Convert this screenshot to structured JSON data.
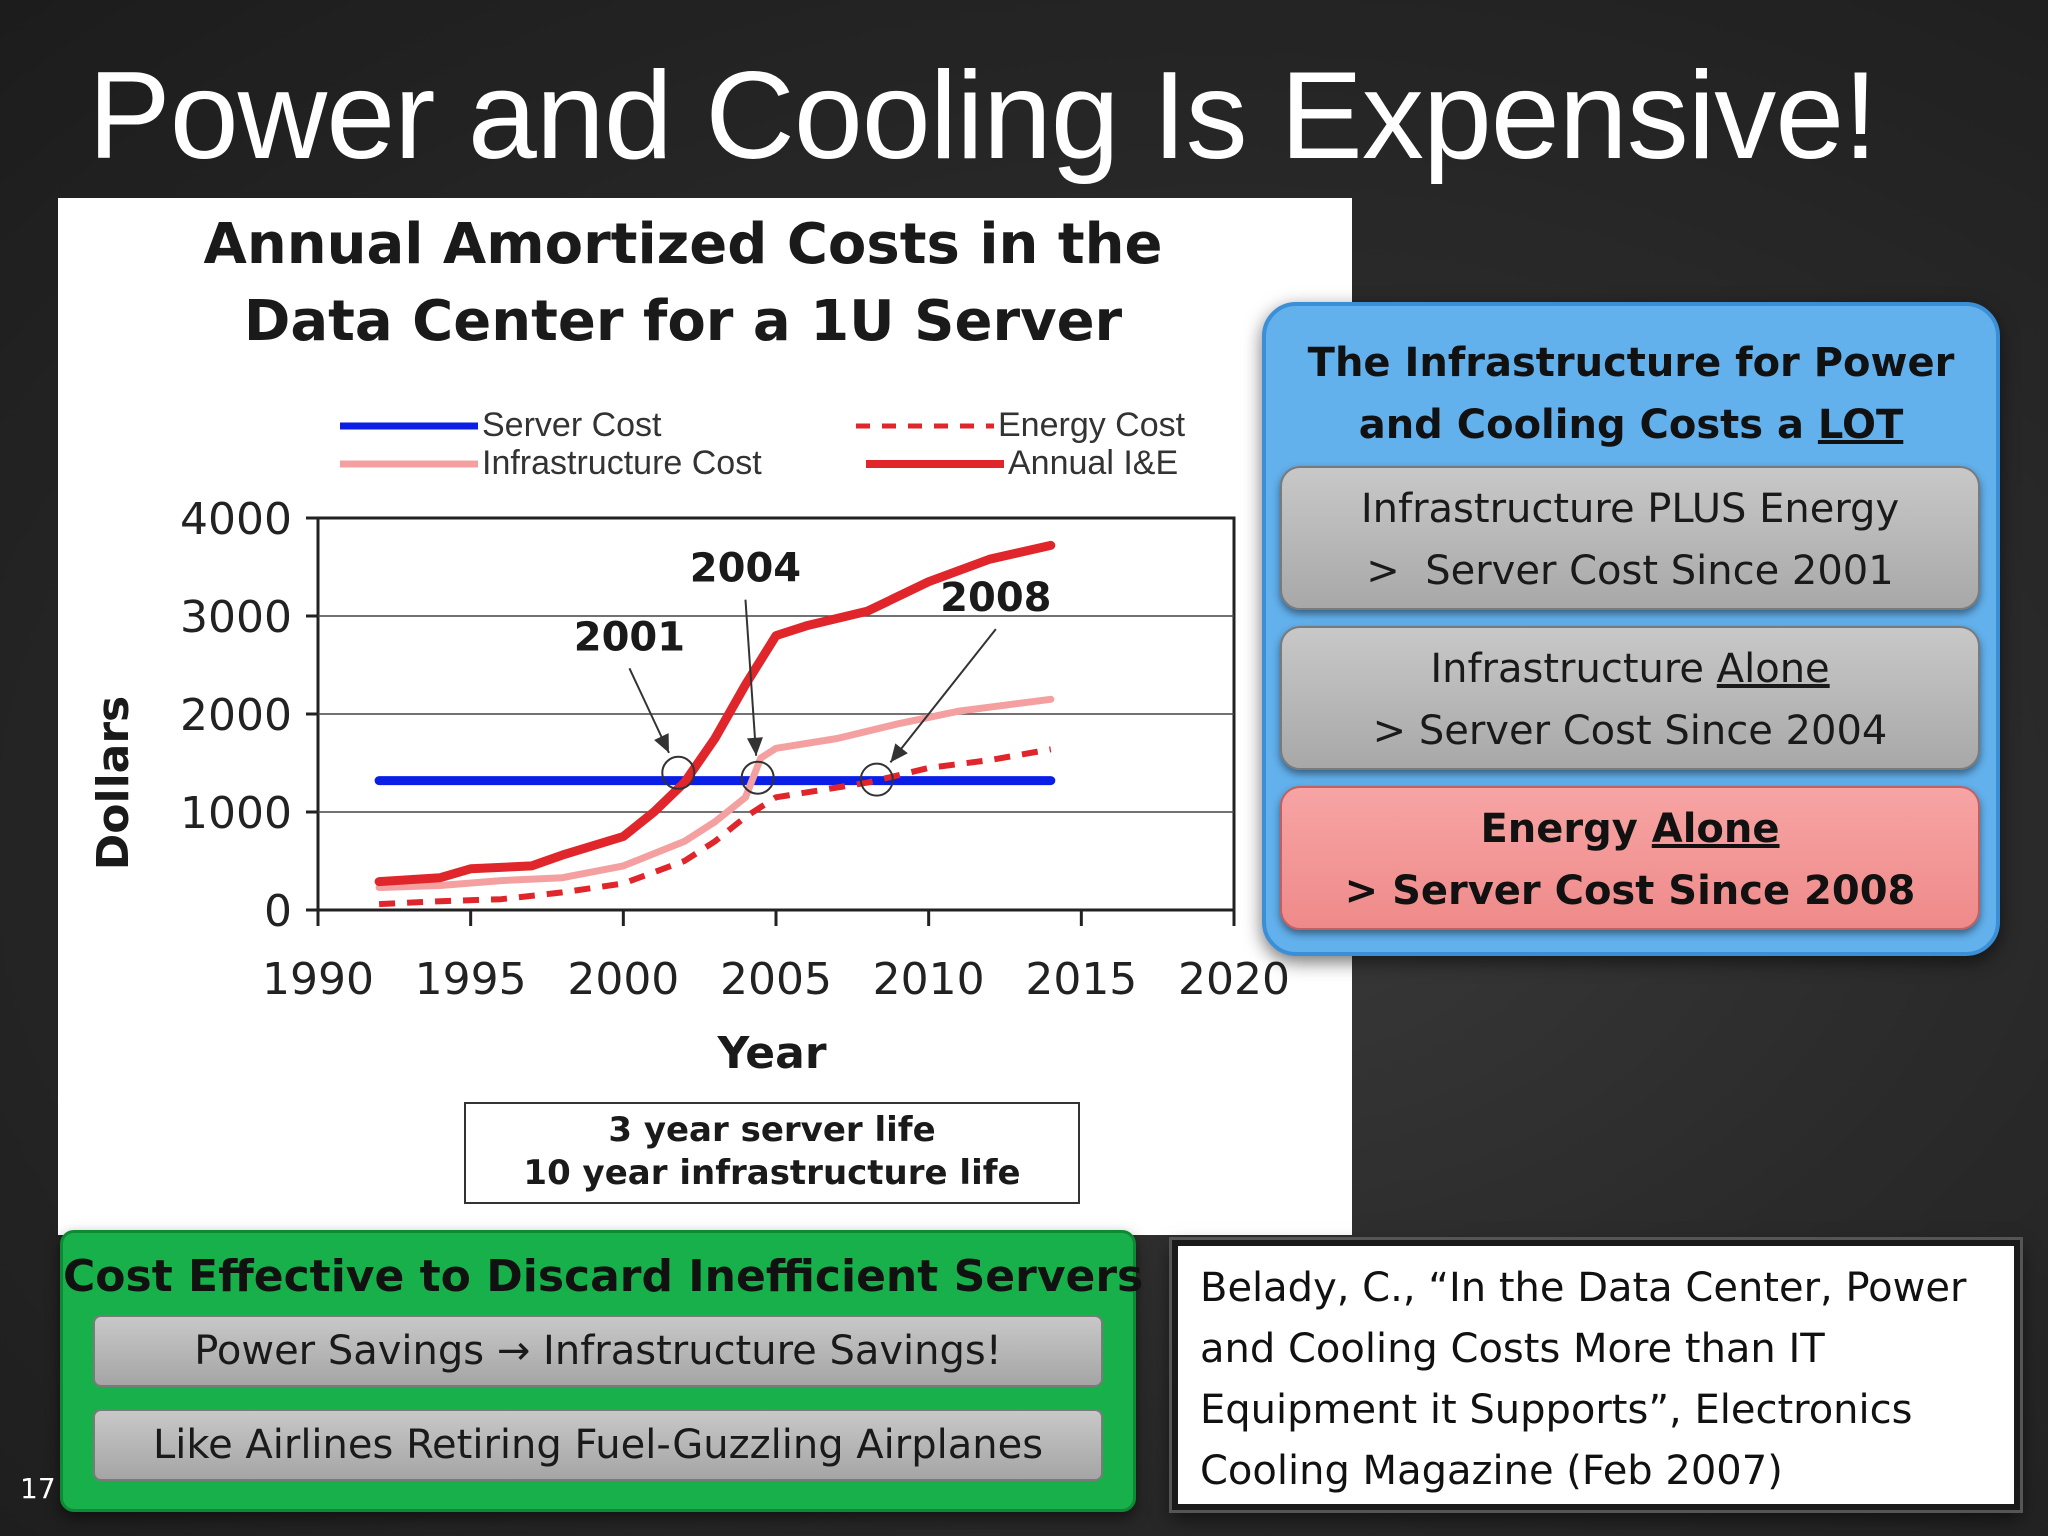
{
  "slide": {
    "title": "Power and Cooling Is Expensive!",
    "number": "17"
  },
  "chart_data": {
    "type": "line",
    "title_lines": [
      "Annual Amortized Costs in the",
      "Data Center for a 1U Server"
    ],
    "xlabel": "Year",
    "ylabel": "Dollars",
    "xlim": [
      1990,
      2020
    ],
    "ylim": [
      0,
      4000
    ],
    "xticks": [
      1990,
      1995,
      2000,
      2005,
      2010,
      2015,
      2020
    ],
    "yticks": [
      0,
      1000,
      2000,
      3000,
      4000
    ],
    "grid": "horizontal",
    "legend": [
      "Server Cost",
      "Energy Cost",
      "Infrastructure Cost",
      "Annual I&E"
    ],
    "legend_position": "top",
    "series": [
      {
        "name": "Server Cost",
        "color": "#0a1ee6",
        "style": "solid",
        "x": [
          1992,
          2014
        ],
        "y": [
          1320,
          1320
        ]
      },
      {
        "name": "Infrastructure Cost",
        "color": "#f5a0a0",
        "style": "solid",
        "x": [
          1992,
          1994,
          1996,
          1998,
          2000,
          2002,
          2003,
          2004,
          2004.5,
          2005,
          2007,
          2009,
          2011,
          2014
        ],
        "y": [
          230,
          250,
          300,
          330,
          450,
          700,
          900,
          1150,
          1550,
          1650,
          1750,
          1900,
          2030,
          2150
        ]
      },
      {
        "name": "Energy Cost",
        "color": "#e0262b",
        "style": "dashed",
        "x": [
          1992,
          1994,
          1996,
          1998,
          2000,
          2002,
          2003,
          2004,
          2005,
          2006,
          2008,
          2010,
          2012,
          2014
        ],
        "y": [
          60,
          90,
          110,
          180,
          270,
          500,
          700,
          950,
          1150,
          1200,
          1300,
          1450,
          1530,
          1640
        ]
      },
      {
        "name": "Annual I&E",
        "color": "#e0262b",
        "style": "solid",
        "x": [
          1992,
          1994,
          1995,
          1997,
          1998,
          2000,
          2001,
          2002,
          2003,
          2004,
          2005,
          2006,
          2008,
          2010,
          2012,
          2014
        ],
        "y": [
          290,
          330,
          420,
          450,
          560,
          750,
          1000,
          1300,
          1750,
          2300,
          2800,
          2900,
          3050,
          3350,
          3580,
          3720
        ]
      }
    ],
    "annotations": [
      {
        "text": "2001",
        "x": 2001.8,
        "y": 1400
      },
      {
        "text": "2004",
        "x": 2004.4,
        "y": 1350
      },
      {
        "text": "2008",
        "x": 2008.3,
        "y": 1330
      }
    ],
    "note_lines": [
      "3 year server life",
      "10 year infrastructure life"
    ]
  },
  "callout": {
    "heading_line1": "The Infrastructure for Power",
    "heading_line2_pre": "and Cooling Costs a ",
    "heading_line2_emph": "LOT",
    "item1_line1": "Infrastructure PLUS Energy",
    "item1_line2": ">  Server Cost Since 2001",
    "item2_line1_pre": "Infrastructure ",
    "item2_line1_emph": "Alone",
    "item2_line2": "> Server Cost Since 2004",
    "item3_line1_pre": "Energy ",
    "item3_line1_emph": "Alone",
    "item3_line2": "> Server Cost Since 2008"
  },
  "green": {
    "heading": "Cost Effective to Discard Inefficient Servers",
    "item1": "Power Savings → Infrastructure Savings!",
    "item2": "Like Airlines Retiring Fuel-Guzzling Airplanes"
  },
  "citation": {
    "line1": "Belady, C., “In the Data Center, Power",
    "line2": "and Cooling Costs More than IT",
    "line3": "Equipment it Supports”, Electronics",
    "line4": "Cooling Magazine (Feb 2007)"
  },
  "colors": {
    "server": "#0a1ee6",
    "infra": "#f5a0a0",
    "energy": "#e0262b",
    "callout": "#62b0ec",
    "callout_alert": "#ef8a8a",
    "green": "#18b04a"
  }
}
